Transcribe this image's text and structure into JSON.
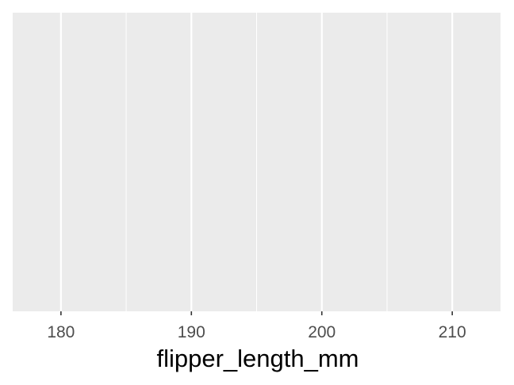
{
  "chart_data": {
    "type": "scatter",
    "xlabel": "flipper_length_mm",
    "ylabel": "",
    "xlim": [
      176.3,
      213.7
    ],
    "x_ticks": [
      180,
      190,
      200,
      210
    ],
    "x_minor_ticks": [
      185,
      195,
      205
    ],
    "x_tick_labels": [
      "180",
      "190",
      "200",
      "210"
    ],
    "y_axis_shown": false,
    "grid": true,
    "legend": "none",
    "series": [],
    "colors": {
      "panel_background": "#ebebeb",
      "grid_major": "#ffffff",
      "grid_minor": "#ffffff",
      "tick_text": "#4d4d4d",
      "tick_mark": "#333333",
      "axis_title": "#000000"
    }
  }
}
